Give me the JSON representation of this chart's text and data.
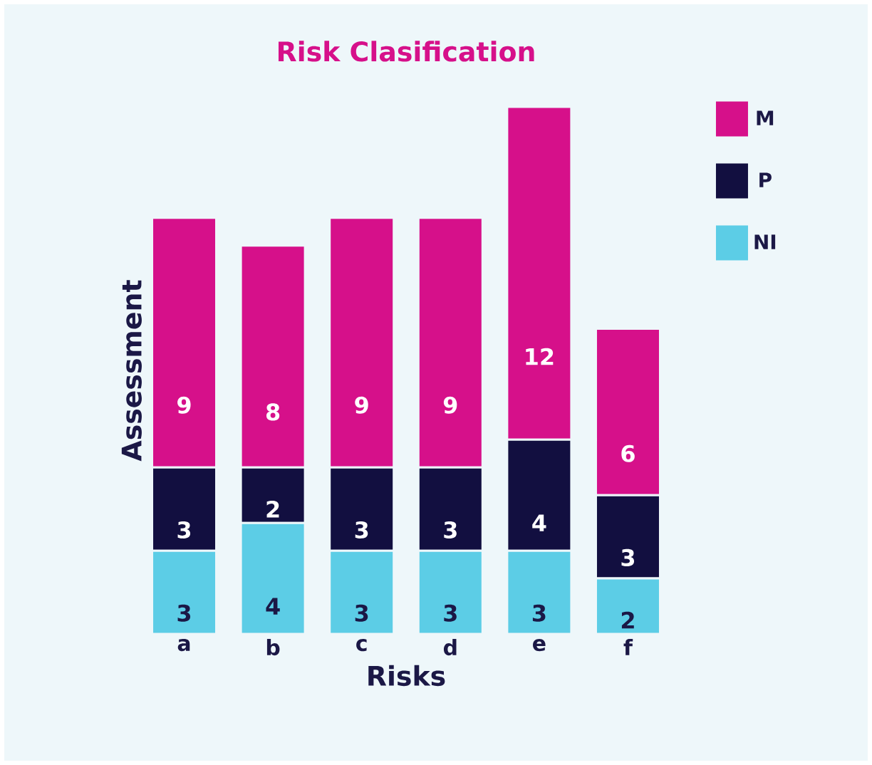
{
  "chart_data": {
    "type": "bar",
    "title": "Risk Clasification",
    "xlabel": "Risks",
    "ylabel": "Assessment",
    "categories": [
      "a",
      "b",
      "c",
      "d",
      "e",
      "f"
    ],
    "stacked": true,
    "data_labels": true,
    "legend": "top right",
    "series": [
      {
        "name": "NI",
        "color": "#5ccde6",
        "values": [
          3,
          4,
          3,
          3,
          3,
          2
        ]
      },
      {
        "name": "P",
        "color": "#120f40",
        "values": [
          3,
          2,
          3,
          3,
          4,
          3
        ]
      },
      {
        "name": "M",
        "color": "#d6108a",
        "values": [
          9,
          8,
          9,
          9,
          12,
          6
        ]
      }
    ]
  }
}
